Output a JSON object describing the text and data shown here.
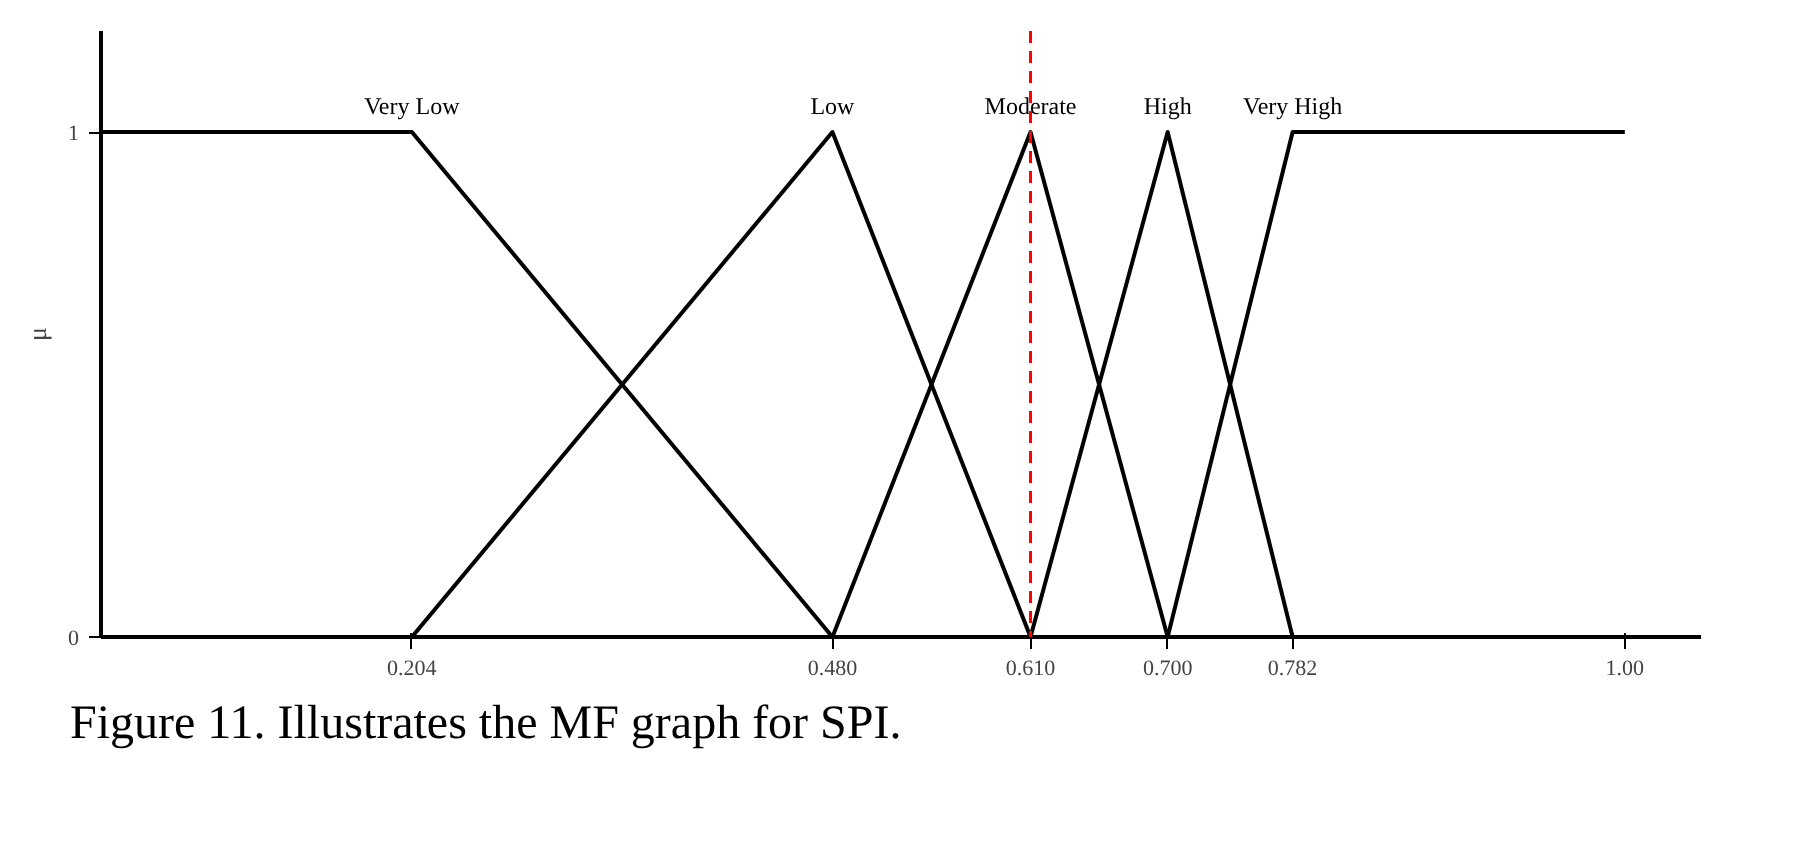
{
  "chart_data": {
    "type": "line",
    "ylabel": "μ",
    "xlim": [
      0,
      1.05
    ],
    "ylim": [
      0,
      1.2
    ],
    "xticks": [
      0.204,
      {
        "value": 0.48,
        "label": "0.480"
      },
      {
        "value": 0.61,
        "label": "0.610"
      },
      {
        "value": 0.7,
        "label": "0.700"
      },
      0.782,
      {
        "value": 1.0,
        "label": "1.00"
      }
    ],
    "yticks": [
      0,
      1
    ],
    "series": [
      {
        "name": "Very Low",
        "color": "#000000",
        "x": [
          0,
          0.204,
          0.48
        ],
        "values": [
          1,
          1,
          0
        ]
      },
      {
        "name": "Low",
        "color": "#000000",
        "x": [
          0.204,
          0.48,
          0.61
        ],
        "values": [
          0,
          1,
          0
        ]
      },
      {
        "name": "Moderate",
        "color": "#000000",
        "x": [
          0.48,
          0.61,
          0.7
        ],
        "values": [
          0,
          1,
          0
        ]
      },
      {
        "name": "High",
        "color": "#000000",
        "x": [
          0.61,
          0.7,
          0.782
        ],
        "values": [
          0,
          1,
          0
        ]
      },
      {
        "name": "Very High",
        "color": "#000000",
        "x": [
          0.7,
          0.782,
          1.0
        ],
        "values": [
          0,
          1,
          1
        ]
      }
    ],
    "ref_lines": [
      {
        "axis": "x",
        "value": 0.61,
        "color": "#ff0000",
        "line_style": "dashed"
      }
    ],
    "annotations": [
      "Figure 11. Illustrates the MF graph for SPI."
    ],
    "grid": false
  }
}
